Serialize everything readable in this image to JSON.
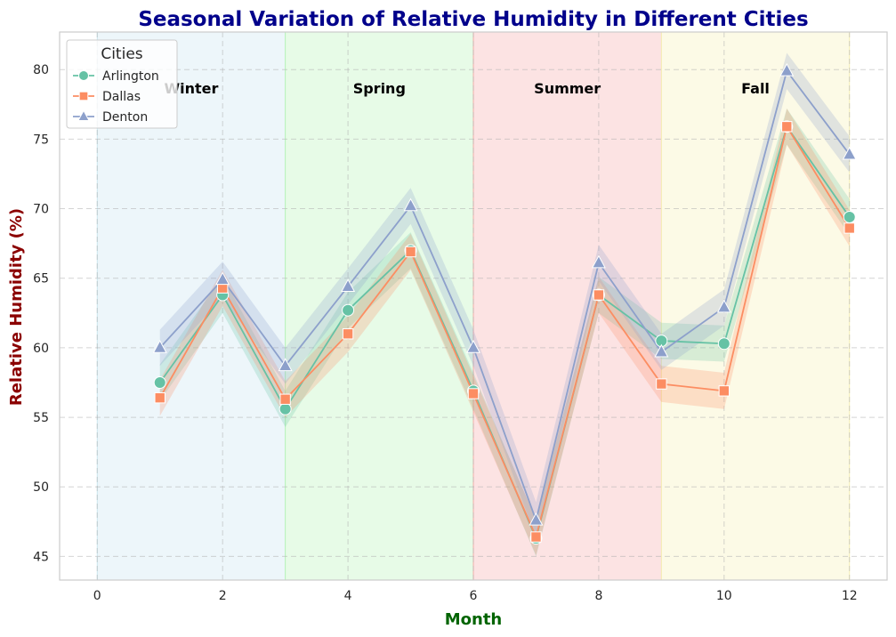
{
  "chart_data": {
    "type": "line",
    "title": "Seasonal Variation of Relative Humidity in Different Cities",
    "xlabel": "Month",
    "ylabel": "Relative Humidity (%)",
    "xlim": [
      -0.6,
      12.6
    ],
    "ylim": [
      43.3,
      82.7
    ],
    "xticks": [
      0,
      2,
      4,
      6,
      8,
      10,
      12
    ],
    "yticks": [
      45,
      50,
      55,
      60,
      65,
      70,
      75,
      80
    ],
    "grid": true,
    "legend": {
      "title": "Cities",
      "placement": "top-left"
    },
    "x": [
      1,
      2,
      3,
      4,
      5,
      6,
      7,
      8,
      9,
      10,
      11,
      12
    ],
    "series": [
      {
        "name": "Arlington",
        "color": "#66c2a5",
        "marker": "circle",
        "values": [
          57.5,
          63.8,
          55.6,
          62.7,
          67.0,
          56.9,
          46.3,
          63.8,
          60.5,
          60.3,
          75.9,
          69.4
        ],
        "band": 1.3
      },
      {
        "name": "Dallas",
        "color": "#fc8d62",
        "marker": "square",
        "values": [
          56.4,
          64.3,
          56.3,
          61.0,
          66.9,
          56.7,
          46.4,
          63.8,
          57.4,
          56.9,
          75.9,
          68.6
        ],
        "band": 1.3
      },
      {
        "name": "Denton",
        "color": "#8da0cb",
        "marker": "triangle",
        "values": [
          60.0,
          64.9,
          58.7,
          64.4,
          70.2,
          60.0,
          47.6,
          66.1,
          59.7,
          62.9,
          79.9,
          73.9
        ],
        "band": 1.3
      }
    ],
    "seasons": [
      {
        "label": "Winter",
        "start": 0,
        "end": 3,
        "color": "#add8e6"
      },
      {
        "label": "Spring",
        "start": 3,
        "end": 6,
        "color": "#90ee90"
      },
      {
        "label": "Summer",
        "start": 6,
        "end": 9,
        "color": "#f08080"
      },
      {
        "label": "Fall",
        "start": 9,
        "end": 12,
        "color": "#f0e68c"
      }
    ],
    "title_color": "#00008b",
    "xlabel_color": "#006400",
    "ylabel_color": "#8b0000"
  }
}
